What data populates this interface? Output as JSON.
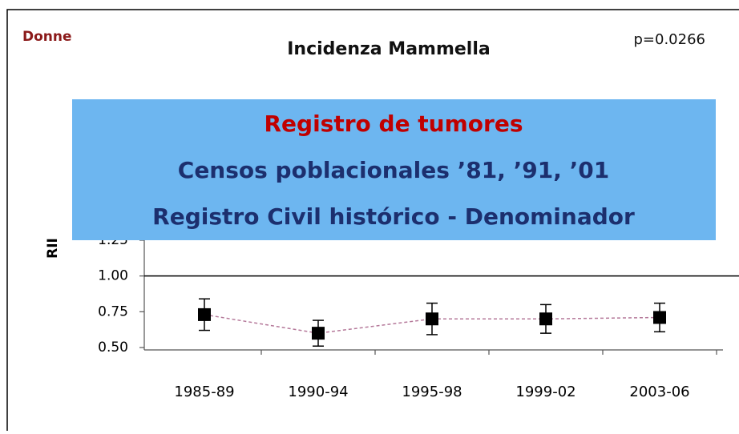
{
  "chart_data": {
    "type": "errorbar_line",
    "title": "Incidenza Mammella",
    "subtitle": "Donne",
    "annotation": "p=0.0266",
    "y_label": "RII",
    "categories": [
      "1985-89",
      "1990-94",
      "1995-98",
      "1999-02",
      "2003-06"
    ],
    "values": [
      0.73,
      0.6,
      0.7,
      0.7,
      0.71
    ],
    "errors": [
      0.11,
      0.09,
      0.11,
      0.1,
      0.1
    ],
    "color": "#000000",
    "line_color": "#b5799a",
    "ylim": [
      0.5,
      1.25
    ],
    "yticks": [
      {
        "value": 0.5,
        "label": "0.50"
      },
      {
        "value": 0.75,
        "label": "0.75"
      },
      {
        "value": 1.0,
        "label": "1.00"
      },
      {
        "value": 1.25,
        "label": "1.25"
      }
    ],
    "reference_line": 1.0
  },
  "overlay": {
    "lines": [
      "Registro de tumores",
      "Censos poblacionales ’81, ’91, ’01",
      "Registro Civil histórico - Denominador"
    ]
  }
}
